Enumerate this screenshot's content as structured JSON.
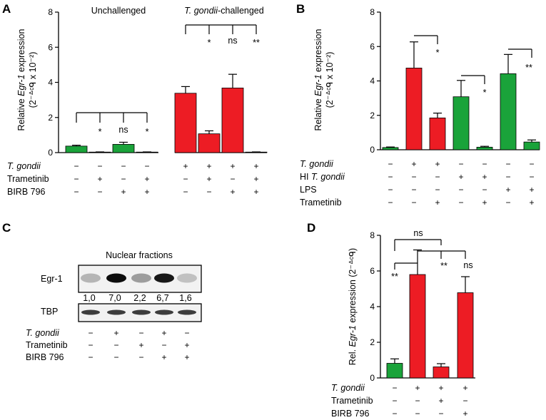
{
  "colors": {
    "green": "#1aa33a",
    "red": "#ed1c24",
    "axis": "#000000"
  },
  "panels": {
    "A": "A",
    "B": "B",
    "C": "C",
    "D": "D"
  },
  "chart_data": [
    {
      "panel": "A",
      "type": "bar",
      "group_labels": {
        "left": "Unchallenged",
        "right_italic": "T. gondii",
        "right_rest": "-challenged"
      },
      "ylabel_parts": [
        "Relative ",
        "Egr-1",
        " expression"
      ],
      "ylabel_unit": "(2⁻ᐞᶜᑫ x 10⁻²)",
      "ylim": [
        0,
        8
      ],
      "yticks": [
        "0",
        "2",
        "4",
        "6",
        "8"
      ],
      "values": [
        0.37,
        0.03,
        0.47,
        0.03,
        3.38,
        1.07,
        3.68,
        0.03
      ],
      "errors": [
        0.05,
        0.01,
        0.12,
        0.01,
        0.38,
        0.17,
        0.78,
        0.01
      ],
      "colors": [
        "green",
        "green",
        "green",
        "green",
        "red",
        "red",
        "red",
        "red"
      ],
      "significance": [
        "",
        "*",
        "ns",
        "*",
        "",
        "*",
        "ns",
        "**"
      ],
      "conditions": [
        {
          "name": "T. gondii",
          "italic": true,
          "signs": [
            "−",
            "−",
            "−",
            "−",
            "+",
            "+",
            "+",
            "+"
          ]
        },
        {
          "name": "Trametinib",
          "italic": false,
          "signs": [
            "−",
            "+",
            "−",
            "+",
            "−",
            "+",
            "−",
            "+"
          ]
        },
        {
          "name": "BIRB 796",
          "italic": false,
          "signs": [
            "−",
            "−",
            "+",
            "+",
            "−",
            "−",
            "+",
            "+"
          ]
        }
      ]
    },
    {
      "panel": "B",
      "type": "bar",
      "ylabel_parts": [
        "Relative ",
        "Egr-1",
        " expression"
      ],
      "ylabel_unit": "(2⁻ᐞᶜᑫ x 10⁻²)",
      "ylim": [
        0,
        8
      ],
      "yticks": [
        "0",
        "2",
        "4",
        "6",
        "8"
      ],
      "values": [
        0.13,
        4.75,
        1.85,
        3.08,
        0.15,
        4.42,
        0.45
      ],
      "errors": [
        0.03,
        1.52,
        0.28,
        0.95,
        0.05,
        1.12,
        0.12
      ],
      "colors": [
        "green",
        "red",
        "red",
        "green",
        "green",
        "green",
        "green"
      ],
      "significance": [
        "*",
        "*",
        "**"
      ],
      "conditions": [
        {
          "name": "T. gondii",
          "italic": true,
          "signs": [
            "−",
            "+",
            "+",
            "−",
            "−",
            "−",
            "−"
          ]
        },
        {
          "name_plain": "HI ",
          "name": "T. gondii",
          "italic": true,
          "signs": [
            "−",
            "−",
            "−",
            "+",
            "+",
            "−",
            "−"
          ]
        },
        {
          "name": "LPS",
          "italic": false,
          "signs": [
            "−",
            "−",
            "−",
            "−",
            "−",
            "+",
            "+"
          ]
        },
        {
          "name": "Trametinib",
          "italic": false,
          "signs": [
            "−",
            "−",
            "+",
            "−",
            "+",
            "−",
            "+"
          ]
        }
      ]
    },
    {
      "panel": "D",
      "type": "bar",
      "ylabel_parts": [
        "Rel. ",
        "Egr-1",
        " expression (2⁻ᐞᶜᑫ)"
      ],
      "ylim": [
        0,
        8
      ],
      "yticks": [
        "0",
        "2",
        "4",
        "6",
        "8"
      ],
      "values": [
        0.82,
        5.8,
        0.62,
        4.78
      ],
      "errors": [
        0.25,
        1.38,
        0.18,
        0.9
      ],
      "colors": [
        "green",
        "red",
        "red",
        "red"
      ],
      "significance": {
        "top": "ns",
        "left": "**",
        "middle": "**",
        "right": "ns"
      },
      "conditions": [
        {
          "name": "T. gondii",
          "italic": true,
          "signs": [
            "−",
            "+",
            "+",
            "+"
          ]
        },
        {
          "name": "Trametinib",
          "italic": false,
          "signs": [
            "−",
            "−",
            "+",
            "−"
          ]
        },
        {
          "name": "BIRB 796",
          "italic": false,
          "signs": [
            "−",
            "−",
            "−",
            "+"
          ]
        }
      ]
    }
  ],
  "blot": {
    "title": "Nuclear fractions",
    "row_labels": [
      "Egr-1",
      "TBP"
    ],
    "intensity_values": [
      "1,0",
      "7,0",
      "2,2",
      "6,7",
      "1,6"
    ],
    "conditions": [
      {
        "name": "T. gondii",
        "italic": true,
        "signs": [
          "−",
          "+",
          "−",
          "+",
          "−"
        ]
      },
      {
        "name": "Trametinib",
        "italic": false,
        "signs": [
          "−",
          "−",
          "+",
          "−",
          "+"
        ]
      },
      {
        "name": "BIRB 796",
        "italic": false,
        "signs": [
          "−",
          "−",
          "−",
          "+",
          "+"
        ]
      }
    ]
  }
}
